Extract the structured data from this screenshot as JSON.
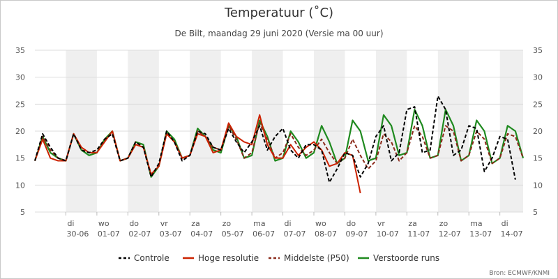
{
  "chart_data": {
    "type": "line",
    "title": "Temperatuur (˚C)",
    "subtitle": "De Bilt, maandag 29 juni 2020 (Versie ma 00 uur)",
    "credit": "Bron: ECMWF/KNMI",
    "ylim": [
      5,
      35
    ],
    "yticks": [
      5,
      10,
      15,
      20,
      25,
      30,
      35
    ],
    "grid": "horizontal",
    "legend_position": "bottom",
    "x_start": "2020-06-29 00:00",
    "x_end": "2020-07-14 18:00",
    "x_step_hours": 6,
    "day_labels": [
      {
        "dow": "di",
        "date": "30-06"
      },
      {
        "dow": "wo",
        "date": "01-07"
      },
      {
        "dow": "do",
        "date": "02-07"
      },
      {
        "dow": "vr",
        "date": "03-07"
      },
      {
        "dow": "za",
        "date": "04-07"
      },
      {
        "dow": "zo",
        "date": "05-07"
      },
      {
        "dow": "ma",
        "date": "06-07"
      },
      {
        "dow": "di",
        "date": "07-07"
      },
      {
        "dow": "wo",
        "date": "08-07"
      },
      {
        "dow": "do",
        "date": "09-07"
      },
      {
        "dow": "vr",
        "date": "10-07"
      },
      {
        "dow": "za",
        "date": "11-07"
      },
      {
        "dow": "zo",
        "date": "12-07"
      },
      {
        "dow": "ma",
        "date": "13-07"
      },
      {
        "dow": "di",
        "date": "14-07"
      }
    ],
    "shaded_days": [
      "30-06",
      "02-07",
      "04-07",
      "06-07",
      "08-07",
      "10-07",
      "12-07",
      "14-07"
    ],
    "legend": [
      {
        "label": "Controle",
        "color": "#000000",
        "dash": "dashed"
      },
      {
        "label": "Hoge resolutie",
        "color": "#cc2200",
        "dash": "solid"
      },
      {
        "label": "Middelste (P50)",
        "color": "#8b2a1a",
        "dash": "dashed"
      },
      {
        "label": "Verstoorde runs",
        "color": "#1f8a1f",
        "dash": "solid"
      }
    ],
    "series": [
      {
        "name": "Controle",
        "values": [
          14.5,
          19.5,
          17,
          15,
          14.5,
          19.5,
          16.5,
          16,
          16.5,
          18.5,
          19.5,
          14.5,
          15,
          18,
          17,
          11.5,
          14,
          20,
          18,
          14.5,
          15.5,
          20,
          19.5,
          17,
          16.5,
          20.5,
          18,
          16,
          18,
          21,
          16.5,
          19,
          20.5,
          16.5,
          15,
          17.5,
          17.5,
          16.5,
          10.5,
          13,
          16,
          15.5,
          11.5,
          14,
          19,
          21,
          14.5,
          16,
          24,
          24.5,
          16,
          16.5,
          26.5,
          24,
          15.5,
          16.5,
          21,
          20.5,
          12.5,
          15,
          19,
          18.5,
          11
        ]
      },
      {
        "name": "Hoge resolutie",
        "values": [
          14.5,
          18.5,
          15,
          14.5,
          14.5,
          19.5,
          17,
          16,
          16,
          18,
          20,
          14.5,
          15,
          17.5,
          17,
          12,
          13.5,
          19.5,
          18,
          15,
          15.5,
          19.5,
          19,
          16,
          16.5,
          21.5,
          19,
          18,
          17.5,
          23,
          17.5,
          15,
          15,
          17.5,
          15.5,
          17,
          18,
          16.5,
          13.5,
          14,
          16,
          15.5,
          8.5
        ]
      },
      {
        "name": "Middelste (P50)",
        "values": [
          14.5,
          19,
          16.5,
          15,
          14.5,
          19.5,
          17,
          16,
          16.5,
          18.5,
          19.5,
          14.5,
          15,
          18,
          17,
          12,
          13.5,
          19.5,
          18,
          15,
          15.5,
          20,
          19,
          17,
          16.5,
          21,
          18.5,
          15,
          16,
          21.5,
          18.5,
          15,
          16,
          19.5,
          17,
          15.5,
          16.5,
          18.5,
          16,
          14,
          15,
          18.5,
          15.5,
          13,
          14.5,
          19.5,
          18,
          14.5,
          16,
          21,
          19,
          15,
          15.5,
          21,
          20,
          14.5,
          15.5,
          20,
          18.5,
          14,
          15,
          19.5,
          19,
          15
        ]
      },
      {
        "name": "Verstoorde runs",
        "values": [
          14.5,
          19,
          16,
          15,
          14.5,
          19.5,
          16.5,
          15.5,
          16,
          18.5,
          20,
          14.5,
          15,
          18,
          17.5,
          11.5,
          13.5,
          20,
          18.5,
          15,
          15.5,
          20.5,
          19,
          16.5,
          16,
          21,
          19,
          15,
          15.5,
          22,
          19,
          14.5,
          15,
          20,
          18,
          15,
          16,
          21,
          18,
          14,
          15,
          22,
          20,
          14.5,
          15,
          23,
          21,
          15.5,
          16,
          24,
          21,
          15,
          15.5,
          24,
          21,
          14.5,
          15.5,
          22,
          20,
          14,
          15,
          21,
          20,
          15
        ]
      }
    ]
  }
}
